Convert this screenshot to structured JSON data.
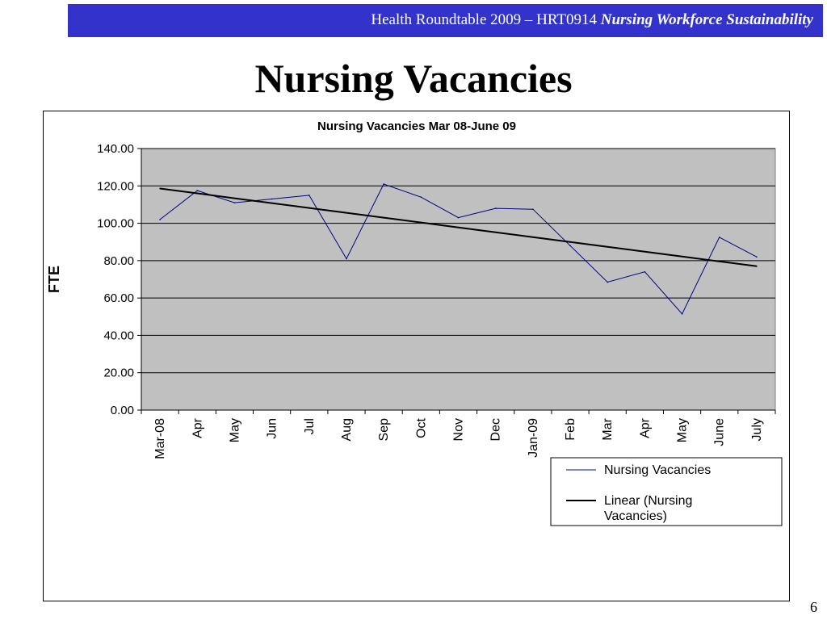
{
  "header": {
    "prefix": "Health Roundtable  2009 – HRT0914 ",
    "emphasis": "Nursing Workforce Sustainability"
  },
  "slide_title": "Nursing Vacancies",
  "page_number": "6",
  "colors": {
    "header_bg": "#3333cc",
    "plot_bg": "#c0c0c0",
    "series_line": "#000080",
    "trend_line": "#000000"
  },
  "chart_data": {
    "type": "line",
    "title": "Nursing Vacancies Mar 08-June 09",
    "xlabel": "",
    "ylabel": "FTE",
    "ylim": [
      0,
      140
    ],
    "y_ticks": [
      "0.00",
      "20.00",
      "40.00",
      "60.00",
      "80.00",
      "100.00",
      "120.00",
      "140.00"
    ],
    "grid": true,
    "legend_position": "bottom-right",
    "categories": [
      "Mar-08",
      "Apr",
      "May",
      "Jun",
      "Jul",
      "Aug",
      "Sep",
      "Oct",
      "Nov",
      "Dec",
      "Jan-09",
      "Feb",
      "Mar",
      "Apr",
      "May",
      "June",
      "July"
    ],
    "series": [
      {
        "name": "Nursing Vacancies",
        "values": [
          102,
          117.5,
          111,
          113,
          115,
          81,
          121,
          114,
          103,
          108,
          107.5,
          88,
          68.5,
          74,
          51.5,
          92.5,
          82
        ]
      },
      {
        "name": "Linear (Nursing\nVacancies)",
        "values": [
          118.6,
          116.0,
          113.4,
          110.8,
          108.2,
          105.6,
          103.0,
          100.4,
          97.8,
          95.2,
          92.6,
          90.0,
          87.4,
          84.8,
          82.2,
          79.6,
          77.0
        ]
      }
    ]
  }
}
